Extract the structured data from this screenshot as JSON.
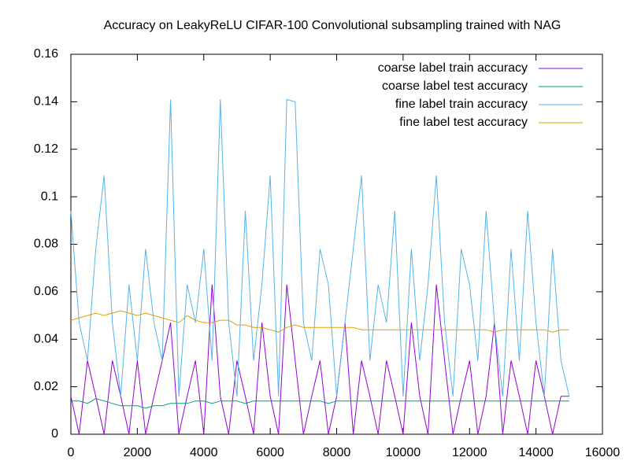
{
  "chart_data": {
    "type": "line",
    "title": "Accuracy on LeakyReLU CIFAR-100 Convolutional subsampling trained with NAG",
    "x": [
      0,
      250,
      500,
      750,
      1000,
      1250,
      1500,
      1750,
      2000,
      2250,
      2500,
      2750,
      3000,
      3250,
      3500,
      3750,
      4000,
      4250,
      4500,
      4750,
      5000,
      5250,
      5500,
      5750,
      6000,
      6250,
      6500,
      6750,
      7000,
      7250,
      7500,
      7750,
      8000,
      8250,
      8500,
      8750,
      9000,
      9250,
      9500,
      9750,
      10000,
      10250,
      10500,
      10750,
      11000,
      11250,
      11500,
      11750,
      12000,
      12250,
      12500,
      12750,
      13000,
      13250,
      13500,
      13750,
      14000,
      14250,
      14500,
      14750,
      15000
    ],
    "series": [
      {
        "name": "coarse label train accuracy",
        "color": "#9400d3",
        "values": [
          0.016,
          0,
          0.031,
          0.016,
          0,
          0.031,
          0.016,
          0,
          0.031,
          0,
          0.016,
          0.031,
          0.047,
          0,
          0.016,
          0.031,
          0,
          0.063,
          0.016,
          0,
          0.031,
          0.016,
          0,
          0.047,
          0.016,
          0,
          0.063,
          0.031,
          0,
          0.016,
          0.031,
          0,
          0.016,
          0.047,
          0,
          0.031,
          0.016,
          0,
          0.031,
          0.016,
          0,
          0.047,
          0.016,
          0,
          0.063,
          0.031,
          0,
          0.016,
          0.031,
          0,
          0.016,
          0.047,
          0,
          0.031,
          0.016,
          0,
          0.031,
          0.016,
          0,
          0.016,
          0.016
        ]
      },
      {
        "name": "coarse label test accuracy",
        "color": "#009e73",
        "values": [
          0.014,
          0.014,
          0.013,
          0.015,
          0.014,
          0.013,
          0.012,
          0.012,
          0.012,
          0.011,
          0.012,
          0.012,
          0.013,
          0.013,
          0.013,
          0.014,
          0.014,
          0.013,
          0.014,
          0.014,
          0.014,
          0.013,
          0.014,
          0.014,
          0.014,
          0.014,
          0.014,
          0.014,
          0.014,
          0.014,
          0.014,
          0.013,
          0.014,
          0.014,
          0.014,
          0.014,
          0.014,
          0.014,
          0.014,
          0.014,
          0.014,
          0.014,
          0.014,
          0.014,
          0.014,
          0.014,
          0.014,
          0.014,
          0.014,
          0.014,
          0.014,
          0.014,
          0.014,
          0.014,
          0.014,
          0.014,
          0.014,
          0.014,
          0.014,
          0.014,
          0.014
        ]
      },
      {
        "name": "fine label train accuracy",
        "color": "#56b4e9",
        "values": [
          0.094,
          0.047,
          0.031,
          0.078,
          0.109,
          0.047,
          0.016,
          0.063,
          0.031,
          0.078,
          0.047,
          0.031,
          0.141,
          0.016,
          0.063,
          0.047,
          0.078,
          0.031,
          0.141,
          0.047,
          0.016,
          0.094,
          0.031,
          0.063,
          0.109,
          0.016,
          0.141,
          0.14,
          0.047,
          0.031,
          0.078,
          0.063,
          0.016,
          0.047,
          0.078,
          0.109,
          0.031,
          0.063,
          0.047,
          0.094,
          0.016,
          0.078,
          0.031,
          0.063,
          0.109,
          0.047,
          0.016,
          0.078,
          0.063,
          0.031,
          0.094,
          0.047,
          0.016,
          0.078,
          0.031,
          0.094,
          0.047,
          0.016,
          0.078,
          0.031,
          0.016
        ]
      },
      {
        "name": "fine label test accuracy",
        "color": "#e69f00",
        "values": [
          0.048,
          0.049,
          0.05,
          0.051,
          0.05,
          0.051,
          0.052,
          0.051,
          0.05,
          0.051,
          0.05,
          0.049,
          0.048,
          0.047,
          0.05,
          0.048,
          0.047,
          0.047,
          0.048,
          0.048,
          0.046,
          0.046,
          0.045,
          0.045,
          0.044,
          0.043,
          0.045,
          0.046,
          0.045,
          0.045,
          0.045,
          0.045,
          0.045,
          0.045,
          0.045,
          0.044,
          0.044,
          0.044,
          0.044,
          0.044,
          0.044,
          0.044,
          0.044,
          0.044,
          0.044,
          0.044,
          0.044,
          0.044,
          0.044,
          0.044,
          0.044,
          0.043,
          0.044,
          0.044,
          0.044,
          0.044,
          0.044,
          0.044,
          0.043,
          0.044,
          0.044
        ]
      }
    ],
    "xlim": [
      0,
      16000
    ],
    "ylim": [
      0,
      0.16
    ],
    "xticks": [
      0,
      2000,
      4000,
      6000,
      8000,
      10000,
      12000,
      14000,
      16000
    ],
    "yticks": [
      0,
      0.02,
      0.04,
      0.06,
      0.08,
      0.1,
      0.12,
      0.14,
      0.16
    ],
    "legend": "top-right"
  }
}
